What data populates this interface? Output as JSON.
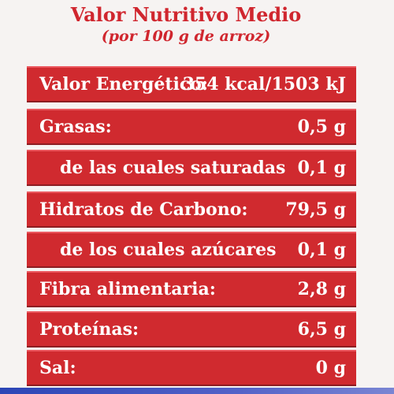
{
  "header": {
    "title": "Valor Nutritivo Medio",
    "subtitle": "(por 100 g de arroz)"
  },
  "rows": [
    {
      "label": "Valor Energético:",
      "value": "354 kcal/1503 kJ"
    },
    {
      "label": "Grasas:",
      "value": "0,5 g"
    },
    {
      "label": "de las cuales saturadas",
      "value": "0,1 g"
    },
    {
      "label": "Hidratos de Carbono:",
      "value": "79,5 g"
    },
    {
      "label": "de los cuales azúcares",
      "value": "0,1 g"
    },
    {
      "label": "Fibra alimentaria:",
      "value": "2,8 g"
    },
    {
      "label": "Proteínas:",
      "value": "6,5 g"
    },
    {
      "label": "Sal:",
      "value": "0 g"
    }
  ],
  "colors": {
    "text_red": "#d0262e",
    "row_red": "#d02a2f",
    "row_text": "#ffffff",
    "background": "#f6f3f2",
    "bottom_blue": "#2c45b6"
  }
}
